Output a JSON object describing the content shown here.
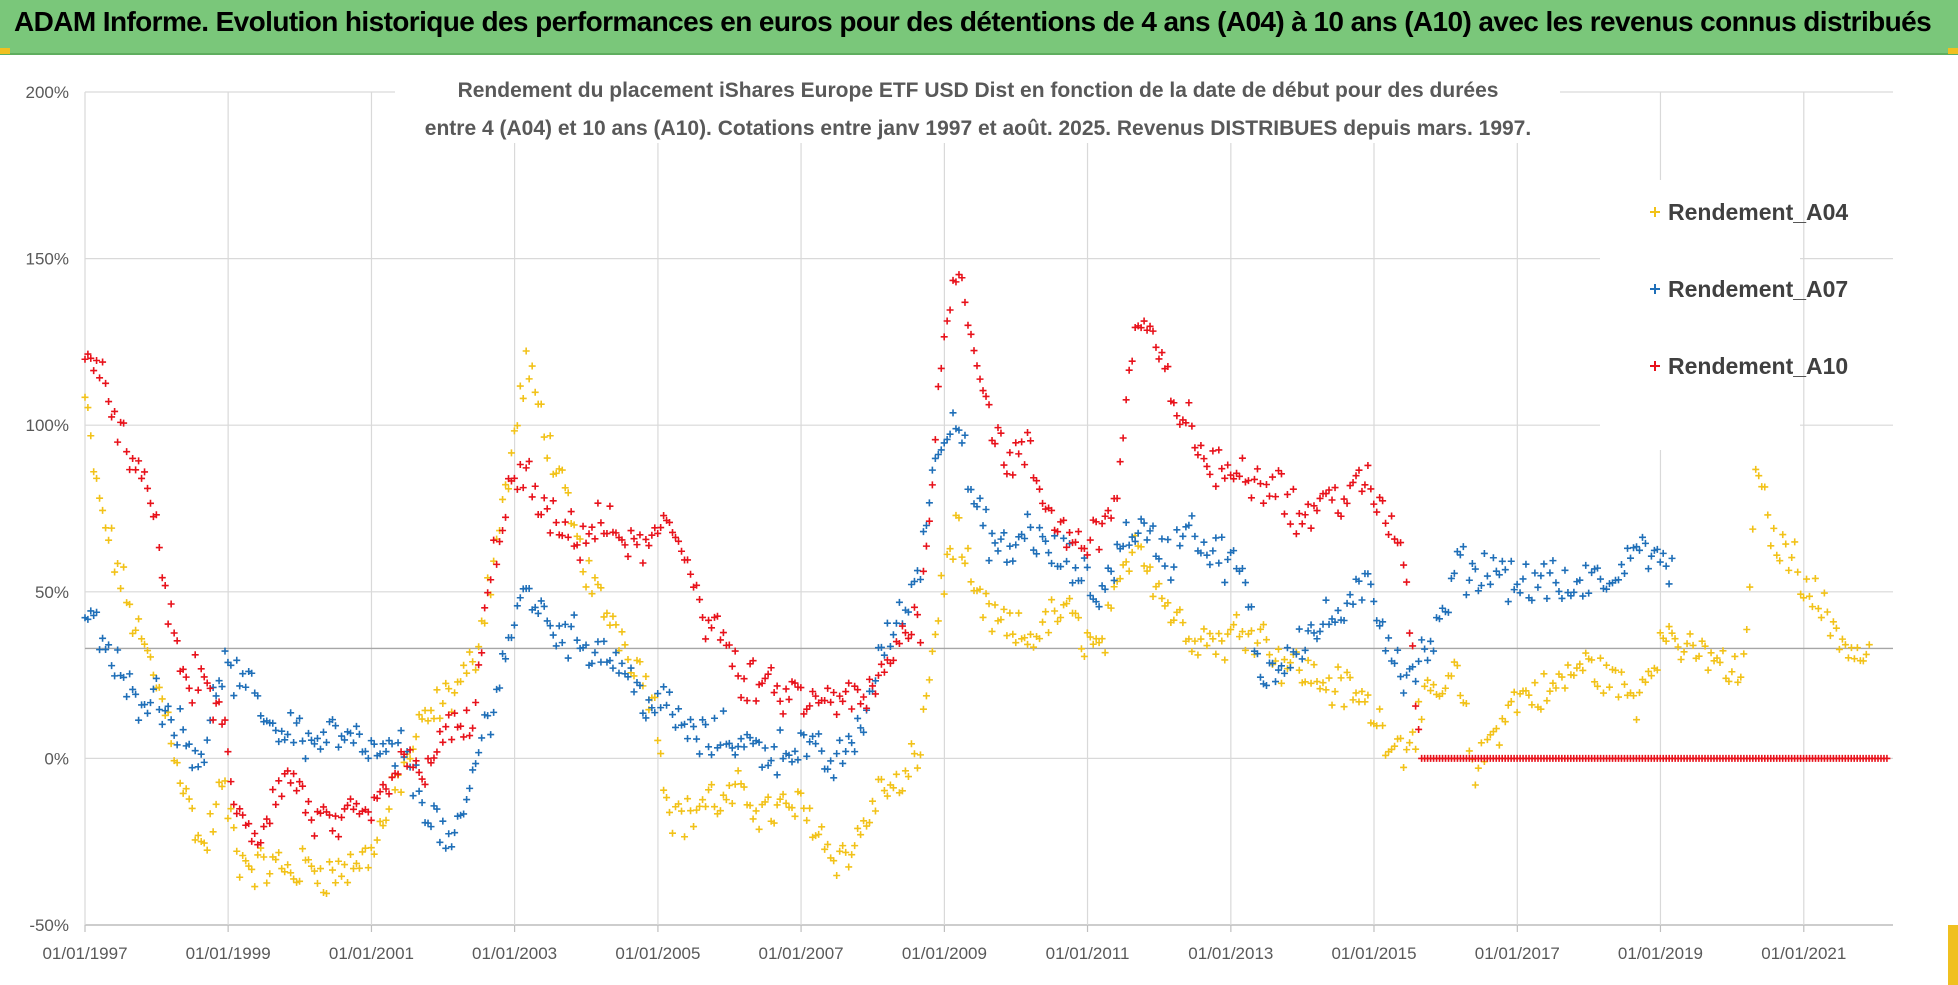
{
  "banner": {
    "title": "ADAM Informe. Evolution historique des performances en euros pour des détentions de 4 ans (A04) à 10 ans (A10) avec les revenus connus distribués"
  },
  "colors": {
    "banner_bg": "#7ac77a",
    "A04": "#f2c218",
    "A07": "#1f6fb8",
    "A10": "#e8121b",
    "grid": "#d9d9d9"
  },
  "chart_data": {
    "type": "scatter",
    "title_lines": [
      "Rendement du placement iShares Europe ETF USD Dist en fonction de la date de début pour des durées",
      "entre 4 (A04) et 10 ans (A10). Cotations entre janv 1997 et août. 2025. Revenus DISTRIBUES depuis mars. 1997."
    ],
    "x_axis": {
      "type": "date",
      "range": [
        "1997-01-01",
        "2022-04-01"
      ],
      "ticks": [
        "01/01/1997",
        "01/01/1999",
        "01/01/2001",
        "01/01/2003",
        "01/01/2005",
        "01/01/2007",
        "01/01/2009",
        "01/01/2011",
        "01/01/2013",
        "01/01/2015",
        "01/01/2017",
        "01/01/2019",
        "01/01/2021"
      ]
    },
    "y_axis": {
      "unit": "%",
      "ylim": [
        -50,
        200
      ],
      "ticks": [
        "-50%",
        "0%",
        "50%",
        "100%",
        "150%",
        "200%"
      ],
      "reference_line": 33
    },
    "grid": true,
    "legend_position": "top-right",
    "marker": "+",
    "series": [
      {
        "name": "Rendement_A04",
        "color": "#f2c218",
        "points": [
          [
            "1997-01-01",
            108
          ],
          [
            "1997-03-01",
            80
          ],
          [
            "1997-06-01",
            60
          ],
          [
            "1997-09-01",
            42
          ],
          [
            "1997-12-01",
            28
          ],
          [
            "1998-03-01",
            12
          ],
          [
            "1998-06-01",
            -12
          ],
          [
            "1998-09-01",
            -28
          ],
          [
            "1998-12-01",
            -8
          ],
          [
            "1999-03-01",
            -30
          ],
          [
            "1999-06-01",
            -33
          ],
          [
            "1999-09-01",
            -32
          ],
          [
            "1999-12-01",
            -34
          ],
          [
            "2000-03-01",
            -32
          ],
          [
            "2000-06-01",
            -35
          ],
          [
            "2000-09-01",
            -33
          ],
          [
            "2000-12-01",
            -30
          ],
          [
            "2001-03-01",
            -20
          ],
          [
            "2001-06-01",
            -5
          ],
          [
            "2001-09-01",
            8
          ],
          [
            "2001-12-01",
            15
          ],
          [
            "2002-03-01",
            20
          ],
          [
            "2002-06-01",
            28
          ],
          [
            "2002-09-01",
            55
          ],
          [
            "2002-12-01",
            85
          ],
          [
            "2003-03-01",
            118
          ],
          [
            "2003-06-01",
            100
          ],
          [
            "2003-09-01",
            80
          ],
          [
            "2003-12-01",
            62
          ],
          [
            "2004-03-01",
            48
          ],
          [
            "2004-06-01",
            40
          ],
          [
            "2004-09-01",
            30
          ],
          [
            "2004-12-01",
            20
          ],
          [
            "2005-03-01",
            -15
          ],
          [
            "2005-06-01",
            -18
          ],
          [
            "2005-09-01",
            -12
          ],
          [
            "2005-12-01",
            -14
          ],
          [
            "2006-03-01",
            -10
          ],
          [
            "2006-06-01",
            -15
          ],
          [
            "2006-09-01",
            -16
          ],
          [
            "2006-12-01",
            -14
          ],
          [
            "2007-03-01",
            -18
          ],
          [
            "2007-06-01",
            -28
          ],
          [
            "2007-09-01",
            -30
          ],
          [
            "2007-12-01",
            -18
          ],
          [
            "2008-03-01",
            -8
          ],
          [
            "2008-06-01",
            -10
          ],
          [
            "2008-09-01",
            5
          ],
          [
            "2008-12-01",
            45
          ],
          [
            "2009-03-01",
            70
          ],
          [
            "2009-06-01",
            48
          ],
          [
            "2009-09-01",
            42
          ],
          [
            "2009-12-01",
            38
          ],
          [
            "2010-03-01",
            36
          ],
          [
            "2010-06-01",
            40
          ],
          [
            "2010-09-01",
            45
          ],
          [
            "2010-12-01",
            38
          ],
          [
            "2011-03-01",
            32
          ],
          [
            "2011-06-01",
            48
          ],
          [
            "2011-09-01",
            68
          ],
          [
            "2011-12-01",
            55
          ],
          [
            "2012-03-01",
            44
          ],
          [
            "2012-06-01",
            38
          ],
          [
            "2012-09-01",
            36
          ],
          [
            "2012-12-01",
            35
          ],
          [
            "2013-03-01",
            40
          ],
          [
            "2013-06-01",
            38
          ],
          [
            "2013-09-01",
            30
          ],
          [
            "2013-12-01",
            28
          ],
          [
            "2014-03-01",
            24
          ],
          [
            "2014-06-01",
            22
          ],
          [
            "2014-09-01",
            20
          ],
          [
            "2014-12-01",
            16
          ],
          [
            "2015-03-01",
            8
          ],
          [
            "2015-06-01",
            3
          ],
          [
            "2015-09-01",
            14
          ],
          [
            "2015-12-01",
            20
          ],
          [
            "2016-03-01",
            25
          ],
          [
            "2016-06-01",
            -5
          ],
          [
            "2016-09-01",
            8
          ],
          [
            "2016-12-01",
            16
          ],
          [
            "2017-03-01",
            20
          ],
          [
            "2017-06-01",
            19
          ],
          [
            "2017-09-01",
            24
          ],
          [
            "2017-12-01",
            28
          ],
          [
            "2018-03-01",
            26
          ],
          [
            "2018-06-01",
            22
          ],
          [
            "2018-09-01",
            18
          ],
          [
            "2018-12-01",
            32
          ],
          [
            "2019-03-01",
            38
          ],
          [
            "2019-06-01",
            30
          ],
          [
            "2019-09-01",
            32
          ],
          [
            "2019-12-01",
            26
          ],
          [
            "2020-03-01",
            25
          ],
          [
            "2020-05-01",
            85
          ],
          [
            "2020-08-01",
            66
          ],
          [
            "2020-12-01",
            58
          ],
          [
            "2021-03-01",
            48
          ],
          [
            "2021-06-01",
            40
          ],
          [
            "2021-09-01",
            32
          ],
          [
            "2021-12-01",
            30
          ]
        ]
      },
      {
        "name": "Rendement_A07",
        "color": "#1f6fb8",
        "points": [
          [
            "1997-01-01",
            45
          ],
          [
            "1997-03-01",
            38
          ],
          [
            "1997-06-01",
            28
          ],
          [
            "1997-09-01",
            18
          ],
          [
            "1997-12-01",
            20
          ],
          [
            "1998-03-01",
            15
          ],
          [
            "1998-06-01",
            5
          ],
          [
            "1998-09-01",
            2
          ],
          [
            "1998-12-01",
            28
          ],
          [
            "1999-03-01",
            22
          ],
          [
            "1999-06-01",
            18
          ],
          [
            "1999-09-01",
            8
          ],
          [
            "1999-12-01",
            10
          ],
          [
            "2000-03-01",
            4
          ],
          [
            "2000-06-01",
            8
          ],
          [
            "2000-09-01",
            5
          ],
          [
            "2000-12-01",
            3
          ],
          [
            "2001-03-01",
            0
          ],
          [
            "2001-06-01",
            3
          ],
          [
            "2001-09-01",
            -10
          ],
          [
            "2001-12-01",
            -20
          ],
          [
            "2002-03-01",
            -28
          ],
          [
            "2002-06-01",
            -5
          ],
          [
            "2002-09-01",
            15
          ],
          [
            "2002-12-01",
            35
          ],
          [
            "2003-03-01",
            52
          ],
          [
            "2003-06-01",
            42
          ],
          [
            "2003-09-01",
            38
          ],
          [
            "2003-12-01",
            35
          ],
          [
            "2004-03-01",
            33
          ],
          [
            "2004-06-01",
            30
          ],
          [
            "2004-09-01",
            22
          ],
          [
            "2004-12-01",
            16
          ],
          [
            "2005-03-01",
            15
          ],
          [
            "2005-06-01",
            8
          ],
          [
            "2005-09-01",
            5
          ],
          [
            "2005-12-01",
            7
          ],
          [
            "2006-03-01",
            5
          ],
          [
            "2006-06-01",
            3
          ],
          [
            "2006-09-01",
            2
          ],
          [
            "2006-12-01",
            4
          ],
          [
            "2007-03-01",
            2
          ],
          [
            "2007-06-01",
            -2
          ],
          [
            "2007-09-01",
            2
          ],
          [
            "2007-12-01",
            15
          ],
          [
            "2008-03-01",
            35
          ],
          [
            "2008-06-01",
            42
          ],
          [
            "2008-09-01",
            60
          ],
          [
            "2008-12-01",
            95
          ],
          [
            "2009-03-01",
            105
          ],
          [
            "2009-06-01",
            75
          ],
          [
            "2009-09-01",
            65
          ],
          [
            "2009-12-01",
            60
          ],
          [
            "2010-03-01",
            70
          ],
          [
            "2010-06-01",
            62
          ],
          [
            "2010-09-01",
            60
          ],
          [
            "2010-12-01",
            55
          ],
          [
            "2011-03-01",
            48
          ],
          [
            "2011-06-01",
            62
          ],
          [
            "2011-09-01",
            70
          ],
          [
            "2011-12-01",
            65
          ],
          [
            "2012-03-01",
            60
          ],
          [
            "2012-06-01",
            72
          ],
          [
            "2012-09-01",
            62
          ],
          [
            "2012-12-01",
            60
          ],
          [
            "2013-03-01",
            55
          ],
          [
            "2013-06-01",
            25
          ],
          [
            "2013-09-01",
            28
          ],
          [
            "2013-12-01",
            35
          ],
          [
            "2014-03-01",
            38
          ],
          [
            "2014-06-01",
            42
          ],
          [
            "2014-09-01",
            45
          ],
          [
            "2014-12-01",
            52
          ],
          [
            "2015-03-01",
            38
          ],
          [
            "2015-06-01",
            25
          ],
          [
            "2015-09-01",
            30
          ],
          [
            "2015-12-01",
            38
          ],
          [
            "2016-03-01",
            58
          ],
          [
            "2016-06-01",
            55
          ],
          [
            "2016-09-01",
            58
          ],
          [
            "2016-12-01",
            54
          ],
          [
            "2017-03-01",
            52
          ],
          [
            "2017-06-01",
            54
          ],
          [
            "2017-09-01",
            50
          ],
          [
            "2017-12-01",
            52
          ],
          [
            "2018-03-01",
            54
          ],
          [
            "2018-06-01",
            52
          ],
          [
            "2018-09-01",
            68
          ],
          [
            "2018-12-01",
            58
          ],
          [
            "2019-03-01",
            60
          ]
        ]
      },
      {
        "name": "Rendement_A10",
        "color": "#e8121b",
        "points": [
          [
            "1997-01-01",
            125
          ],
          [
            "1997-03-01",
            115
          ],
          [
            "1997-06-01",
            105
          ],
          [
            "1997-09-01",
            85
          ],
          [
            "1997-12-01",
            80
          ],
          [
            "1998-03-01",
            45
          ],
          [
            "1998-06-01",
            22
          ],
          [
            "1998-09-01",
            25
          ],
          [
            "1998-12-01",
            10
          ],
          [
            "1999-03-01",
            -20
          ],
          [
            "1999-06-01",
            -25
          ],
          [
            "1999-09-01",
            -10
          ],
          [
            "1999-12-01",
            -5
          ],
          [
            "2000-03-01",
            -18
          ],
          [
            "2000-06-01",
            -20
          ],
          [
            "2000-09-01",
            -19
          ],
          [
            "2000-12-01",
            -18
          ],
          [
            "2001-03-01",
            -12
          ],
          [
            "2001-06-01",
            0
          ],
          [
            "2001-09-01",
            -5
          ],
          [
            "2001-12-01",
            5
          ],
          [
            "2002-03-01",
            8
          ],
          [
            "2002-06-01",
            10
          ],
          [
            "2002-09-01",
            55
          ],
          [
            "2002-12-01",
            80
          ],
          [
            "2003-03-01",
            85
          ],
          [
            "2003-06-01",
            72
          ],
          [
            "2003-09-01",
            68
          ],
          [
            "2003-12-01",
            66
          ],
          [
            "2004-03-01",
            70
          ],
          [
            "2004-06-01",
            68
          ],
          [
            "2004-09-01",
            62
          ],
          [
            "2004-12-01",
            65
          ],
          [
            "2005-03-01",
            70
          ],
          [
            "2005-06-01",
            60
          ],
          [
            "2005-09-01",
            42
          ],
          [
            "2005-12-01",
            38
          ],
          [
            "2006-03-01",
            20
          ],
          [
            "2006-06-01",
            24
          ],
          [
            "2006-09-01",
            18
          ],
          [
            "2006-12-01",
            20
          ],
          [
            "2007-03-01",
            15
          ],
          [
            "2007-06-01",
            18
          ],
          [
            "2007-09-01",
            17
          ],
          [
            "2007-12-01",
            18
          ],
          [
            "2008-03-01",
            25
          ],
          [
            "2008-06-01",
            38
          ],
          [
            "2008-09-01",
            42
          ],
          [
            "2008-12-01",
            110
          ],
          [
            "2009-03-01",
            150
          ],
          [
            "2009-06-01",
            125
          ],
          [
            "2009-09-01",
            100
          ],
          [
            "2009-12-01",
            88
          ],
          [
            "2010-03-01",
            92
          ],
          [
            "2010-06-01",
            75
          ],
          [
            "2010-09-01",
            68
          ],
          [
            "2010-12-01",
            65
          ],
          [
            "2011-03-01",
            68
          ],
          [
            "2011-06-01",
            80
          ],
          [
            "2011-09-01",
            130
          ],
          [
            "2011-12-01",
            125
          ],
          [
            "2012-03-01",
            110
          ],
          [
            "2012-06-01",
            100
          ],
          [
            "2012-09-01",
            88
          ],
          [
            "2012-12-01",
            85
          ],
          [
            "2013-03-01",
            88
          ],
          [
            "2013-06-01",
            82
          ],
          [
            "2013-09-01",
            85
          ],
          [
            "2013-12-01",
            72
          ],
          [
            "2014-03-01",
            75
          ],
          [
            "2014-06-01",
            78
          ],
          [
            "2014-09-01",
            80
          ],
          [
            "2014-12-01",
            82
          ],
          [
            "2015-03-01",
            72
          ],
          [
            "2015-06-01",
            62
          ],
          [
            "2015-09-01",
            0
          ],
          [
            "2016-06-01",
            0
          ],
          [
            "2017-06-01",
            0
          ],
          [
            "2018-06-01",
            0
          ],
          [
            "2019-06-01",
            0
          ],
          [
            "2020-06-01",
            0
          ],
          [
            "2021-06-01",
            0
          ],
          [
            "2022-03-01",
            0
          ]
        ]
      }
    ]
  }
}
